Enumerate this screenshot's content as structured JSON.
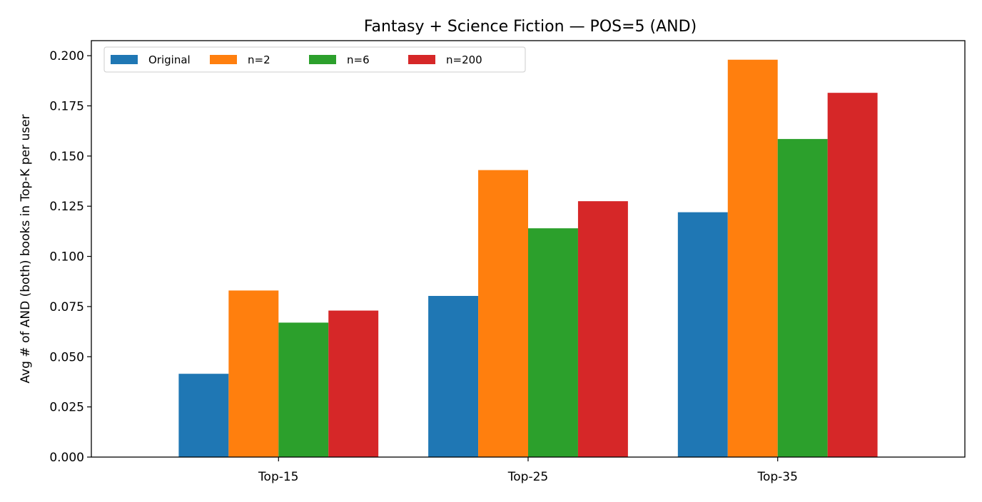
{
  "chart_data": {
    "type": "bar",
    "title": "Fantasy + Science Fiction — POS=5 (AND)",
    "xlabel": "",
    "ylabel": "Avg # of AND (both) books in Top-K per user",
    "categories": [
      "Top-15",
      "Top-25",
      "Top-35"
    ],
    "series": [
      {
        "name": "Original",
        "color": "#1f77b4",
        "values": [
          0.0415,
          0.0803,
          0.122
        ]
      },
      {
        "name": "n=2",
        "color": "#ff7f0e",
        "values": [
          0.083,
          0.143,
          0.198
        ]
      },
      {
        "name": "n=6",
        "color": "#2ca02c",
        "values": [
          0.067,
          0.114,
          0.1585
        ]
      },
      {
        "name": "n=200",
        "color": "#d62728",
        "values": [
          0.073,
          0.1275,
          0.1815
        ]
      }
    ],
    "ylim": [
      0,
      0.2075
    ],
    "yticks": [
      "0.000",
      "0.025",
      "0.050",
      "0.075",
      "0.100",
      "0.125",
      "0.150",
      "0.175",
      "0.200"
    ],
    "grid": false,
    "legend_position": "top-left"
  }
}
